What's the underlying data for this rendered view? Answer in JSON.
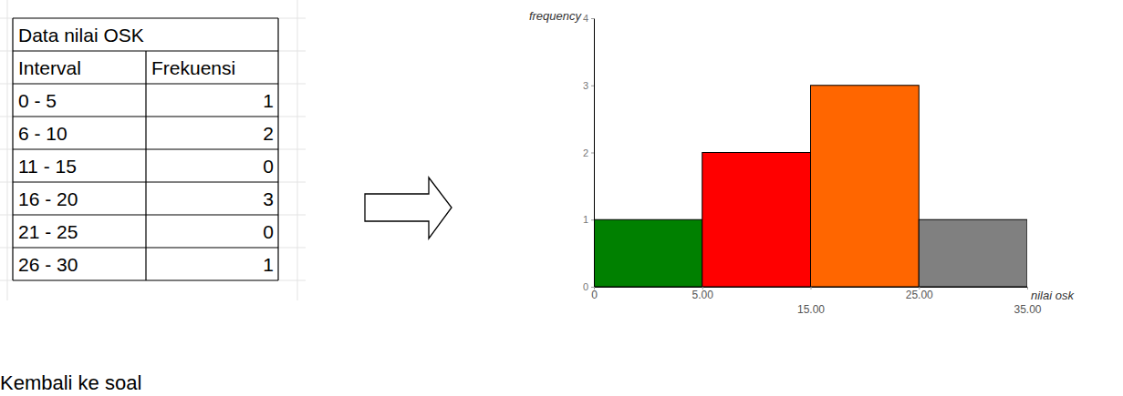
{
  "chart_data": {
    "type": "histogram",
    "x_label": "nilai osk",
    "y_label": "frequency",
    "bins": [
      0,
      5,
      15,
      25,
      35
    ],
    "values": [
      1,
      2,
      3,
      1
    ],
    "colors": [
      "#008000",
      "#ff0000",
      "#ff6600",
      "#808080"
    ],
    "xlim": [
      0,
      35
    ],
    "xticks": [
      0,
      {
        "value": 5,
        "label": "5.00"
      },
      {
        "value": 15,
        "label": "15.00"
      },
      {
        "value": 25,
        "label": "25.00"
      },
      {
        "value": 35,
        "label": "35.00"
      }
    ],
    "ylim": [
      0,
      4
    ],
    "yticks": [
      0,
      1,
      2,
      3,
      4
    ]
  },
  "table": {
    "title": "Data nilai OSK",
    "header": [
      "Interval",
      "Frekuensi"
    ],
    "rows": [
      [
        "0 - 5",
        1
      ],
      [
        "6 - 10",
        2
      ],
      [
        "11 - 15",
        0
      ],
      [
        "16 - 20",
        3
      ],
      [
        "21 - 25",
        0
      ],
      [
        "26 - 30",
        1
      ]
    ]
  },
  "footer": "Kembali ke soal"
}
